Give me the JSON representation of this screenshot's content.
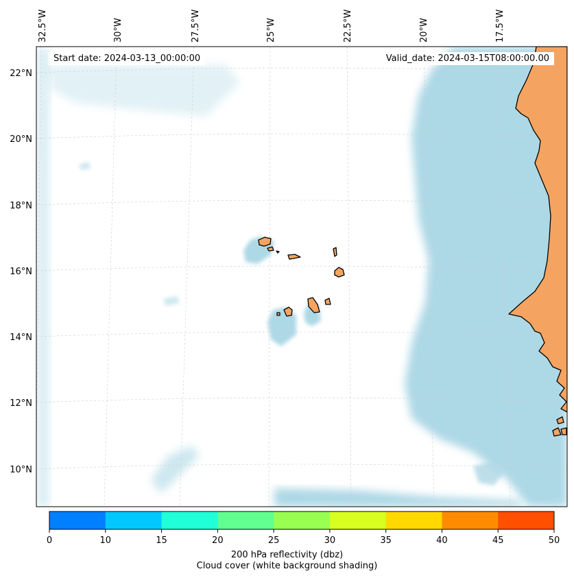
{
  "map": {
    "start_date": "Start date: 2024-03-13_00:00:00",
    "valid_date": "Valid_date: 2024-03-15T08:00:00.00",
    "longitude_labels": [
      "32.5°W",
      "30°W",
      "27.5°W",
      "25°W",
      "22.5°W",
      "20°W",
      "17.5°W"
    ],
    "latitude_labels": [
      "22°N",
      "20°N",
      "18°N",
      "16°N",
      "14°N",
      "12°N",
      "10°N"
    ],
    "colors": {
      "land": "#f4a460",
      "cloud_shading": "#add8e6",
      "coastline": "#000000",
      "gridline": "#cccccc"
    }
  },
  "colorbar": {
    "ticks": [
      "0",
      "10",
      "15",
      "20",
      "25",
      "30",
      "35",
      "40",
      "45",
      "50"
    ],
    "colors": [
      "#0080ff",
      "#00c8ff",
      "#20ffd8",
      "#60ff90",
      "#98ff50",
      "#d8ff20",
      "#ffd800",
      "#ff8c00",
      "#ff5000"
    ],
    "label_line1": "200 hPa reflectivity (dbz)",
    "label_line2": "Cloud cover (white background shading)"
  }
}
